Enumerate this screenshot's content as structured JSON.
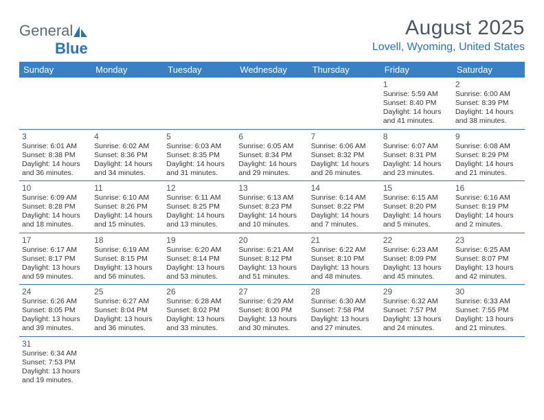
{
  "logo": {
    "text1": "General",
    "text2": "Blue"
  },
  "title": "August 2025",
  "location": "Lovell, Wyoming, United States",
  "colors": {
    "header_bg": "#3a81c4",
    "header_text": "#ffffff",
    "accent": "#2a71b8",
    "title_color": "#4a5560",
    "body_text": "#333333",
    "background": "#ffffff"
  },
  "day_headers": [
    "Sunday",
    "Monday",
    "Tuesday",
    "Wednesday",
    "Thursday",
    "Friday",
    "Saturday"
  ],
  "weeks": [
    [
      null,
      null,
      null,
      null,
      null,
      {
        "n": "1",
        "sr": "Sunrise: 5:59 AM",
        "ss": "Sunset: 8:40 PM",
        "d1": "Daylight: 14 hours",
        "d2": "and 41 minutes."
      },
      {
        "n": "2",
        "sr": "Sunrise: 6:00 AM",
        "ss": "Sunset: 8:39 PM",
        "d1": "Daylight: 14 hours",
        "d2": "and 38 minutes."
      }
    ],
    [
      {
        "n": "3",
        "sr": "Sunrise: 6:01 AM",
        "ss": "Sunset: 8:38 PM",
        "d1": "Daylight: 14 hours",
        "d2": "and 36 minutes."
      },
      {
        "n": "4",
        "sr": "Sunrise: 6:02 AM",
        "ss": "Sunset: 8:36 PM",
        "d1": "Daylight: 14 hours",
        "d2": "and 34 minutes."
      },
      {
        "n": "5",
        "sr": "Sunrise: 6:03 AM",
        "ss": "Sunset: 8:35 PM",
        "d1": "Daylight: 14 hours",
        "d2": "and 31 minutes."
      },
      {
        "n": "6",
        "sr": "Sunrise: 6:05 AM",
        "ss": "Sunset: 8:34 PM",
        "d1": "Daylight: 14 hours",
        "d2": "and 29 minutes."
      },
      {
        "n": "7",
        "sr": "Sunrise: 6:06 AM",
        "ss": "Sunset: 8:32 PM",
        "d1": "Daylight: 14 hours",
        "d2": "and 26 minutes."
      },
      {
        "n": "8",
        "sr": "Sunrise: 6:07 AM",
        "ss": "Sunset: 8:31 PM",
        "d1": "Daylight: 14 hours",
        "d2": "and 23 minutes."
      },
      {
        "n": "9",
        "sr": "Sunrise: 6:08 AM",
        "ss": "Sunset: 8:29 PM",
        "d1": "Daylight: 14 hours",
        "d2": "and 21 minutes."
      }
    ],
    [
      {
        "n": "10",
        "sr": "Sunrise: 6:09 AM",
        "ss": "Sunset: 8:28 PM",
        "d1": "Daylight: 14 hours",
        "d2": "and 18 minutes."
      },
      {
        "n": "11",
        "sr": "Sunrise: 6:10 AM",
        "ss": "Sunset: 8:26 PM",
        "d1": "Daylight: 14 hours",
        "d2": "and 15 minutes."
      },
      {
        "n": "12",
        "sr": "Sunrise: 6:11 AM",
        "ss": "Sunset: 8:25 PM",
        "d1": "Daylight: 14 hours",
        "d2": "and 13 minutes."
      },
      {
        "n": "13",
        "sr": "Sunrise: 6:13 AM",
        "ss": "Sunset: 8:23 PM",
        "d1": "Daylight: 14 hours",
        "d2": "and 10 minutes."
      },
      {
        "n": "14",
        "sr": "Sunrise: 6:14 AM",
        "ss": "Sunset: 8:22 PM",
        "d1": "Daylight: 14 hours",
        "d2": "and 7 minutes."
      },
      {
        "n": "15",
        "sr": "Sunrise: 6:15 AM",
        "ss": "Sunset: 8:20 PM",
        "d1": "Daylight: 14 hours",
        "d2": "and 5 minutes."
      },
      {
        "n": "16",
        "sr": "Sunrise: 6:16 AM",
        "ss": "Sunset: 8:19 PM",
        "d1": "Daylight: 14 hours",
        "d2": "and 2 minutes."
      }
    ],
    [
      {
        "n": "17",
        "sr": "Sunrise: 6:17 AM",
        "ss": "Sunset: 8:17 PM",
        "d1": "Daylight: 13 hours",
        "d2": "and 59 minutes."
      },
      {
        "n": "18",
        "sr": "Sunrise: 6:19 AM",
        "ss": "Sunset: 8:15 PM",
        "d1": "Daylight: 13 hours",
        "d2": "and 56 minutes."
      },
      {
        "n": "19",
        "sr": "Sunrise: 6:20 AM",
        "ss": "Sunset: 8:14 PM",
        "d1": "Daylight: 13 hours",
        "d2": "and 53 minutes."
      },
      {
        "n": "20",
        "sr": "Sunrise: 6:21 AM",
        "ss": "Sunset: 8:12 PM",
        "d1": "Daylight: 13 hours",
        "d2": "and 51 minutes."
      },
      {
        "n": "21",
        "sr": "Sunrise: 6:22 AM",
        "ss": "Sunset: 8:10 PM",
        "d1": "Daylight: 13 hours",
        "d2": "and 48 minutes."
      },
      {
        "n": "22",
        "sr": "Sunrise: 6:23 AM",
        "ss": "Sunset: 8:09 PM",
        "d1": "Daylight: 13 hours",
        "d2": "and 45 minutes."
      },
      {
        "n": "23",
        "sr": "Sunrise: 6:25 AM",
        "ss": "Sunset: 8:07 PM",
        "d1": "Daylight: 13 hours",
        "d2": "and 42 minutes."
      }
    ],
    [
      {
        "n": "24",
        "sr": "Sunrise: 6:26 AM",
        "ss": "Sunset: 8:05 PM",
        "d1": "Daylight: 13 hours",
        "d2": "and 39 minutes."
      },
      {
        "n": "25",
        "sr": "Sunrise: 6:27 AM",
        "ss": "Sunset: 8:04 PM",
        "d1": "Daylight: 13 hours",
        "d2": "and 36 minutes."
      },
      {
        "n": "26",
        "sr": "Sunrise: 6:28 AM",
        "ss": "Sunset: 8:02 PM",
        "d1": "Daylight: 13 hours",
        "d2": "and 33 minutes."
      },
      {
        "n": "27",
        "sr": "Sunrise: 6:29 AM",
        "ss": "Sunset: 8:00 PM",
        "d1": "Daylight: 13 hours",
        "d2": "and 30 minutes."
      },
      {
        "n": "28",
        "sr": "Sunrise: 6:30 AM",
        "ss": "Sunset: 7:58 PM",
        "d1": "Daylight: 13 hours",
        "d2": "and 27 minutes."
      },
      {
        "n": "29",
        "sr": "Sunrise: 6:32 AM",
        "ss": "Sunset: 7:57 PM",
        "d1": "Daylight: 13 hours",
        "d2": "and 24 minutes."
      },
      {
        "n": "30",
        "sr": "Sunrise: 6:33 AM",
        "ss": "Sunset: 7:55 PM",
        "d1": "Daylight: 13 hours",
        "d2": "and 21 minutes."
      }
    ],
    [
      {
        "n": "31",
        "sr": "Sunrise: 6:34 AM",
        "ss": "Sunset: 7:53 PM",
        "d1": "Daylight: 13 hours",
        "d2": "and 19 minutes."
      },
      null,
      null,
      null,
      null,
      null,
      null
    ]
  ]
}
